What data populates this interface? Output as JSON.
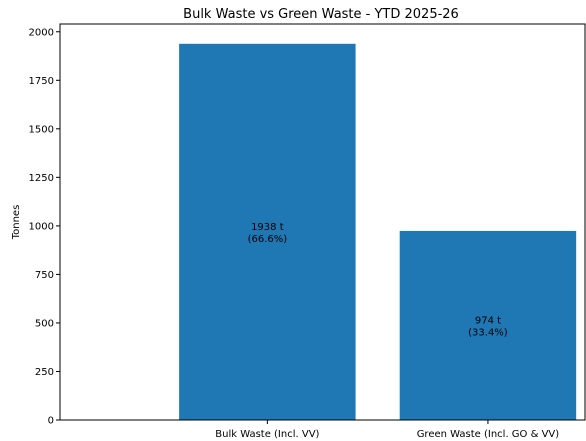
{
  "chart_data": {
    "type": "bar",
    "title": "Bulk Waste vs Green Waste - YTD 2025-26",
    "xlabel": "",
    "ylabel": "Tonnes",
    "categories": [
      "Bulk Waste (Incl. VV)",
      "Green Waste (Incl. GO & VV)"
    ],
    "values": [
      1938,
      974
    ],
    "unit_suffix": " t",
    "bar_labels": [
      {
        "value_text": "1938 t",
        "percent_text": "(66.6%)"
      },
      {
        "value_text": "974 t",
        "percent_text": "(33.4%)"
      }
    ],
    "ylim": [
      0,
      2040
    ],
    "yticks": [
      0,
      250,
      500,
      750,
      1000,
      1250,
      1500,
      1750,
      2000
    ],
    "grid": false,
    "legend": "none",
    "bar_color": "#1f77b4"
  }
}
